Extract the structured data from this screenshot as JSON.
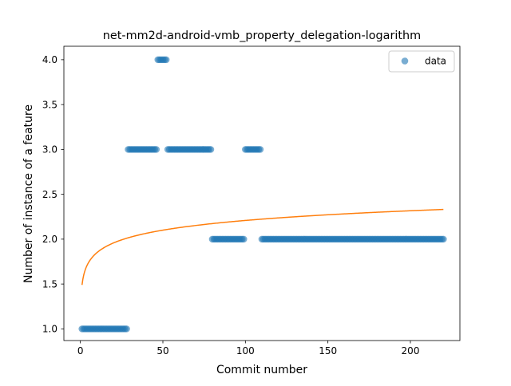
{
  "chart_data": {
    "type": "scatter",
    "title": "net-mm2d-android-vmb_property_delegation-logarithm",
    "xlabel": "Commit number",
    "ylabel": "Number of instance of a feature",
    "xlim": [
      -10,
      230
    ],
    "ylim": [
      0.87,
      4.15
    ],
    "xticks": [
      0,
      50,
      100,
      150,
      200
    ],
    "yticks": [
      1.0,
      1.5,
      2.0,
      2.5,
      3.0,
      3.5,
      4.0
    ],
    "ytick_labels": [
      "1.0",
      "1.5",
      "2.0",
      "2.5",
      "3.0",
      "3.5",
      "4.0"
    ],
    "grid": false,
    "legend": {
      "position": "top-right",
      "entries": [
        "data"
      ]
    },
    "colors": {
      "points": "#1f77b4",
      "fit": "#ff7f0e"
    },
    "series": [
      {
        "name": "data",
        "kind": "points",
        "segments": [
          {
            "x_from": 1,
            "x_to": 28,
            "y": 1
          },
          {
            "x_from": 29,
            "x_to": 46,
            "y": 3
          },
          {
            "x_from": 47,
            "x_to": 52,
            "y": 4
          },
          {
            "x_from": 53,
            "x_to": 79,
            "y": 3
          },
          {
            "x_from": 80,
            "x_to": 99,
            "y": 2
          },
          {
            "x_from": 100,
            "x_to": 109,
            "y": 3
          },
          {
            "x_from": 110,
            "x_to": 220,
            "y": 2
          }
        ]
      },
      {
        "kind": "line",
        "function": "a + b*ln(x)",
        "a": 1.49,
        "b": 0.156,
        "x_range": [
          1,
          220
        ]
      }
    ]
  }
}
